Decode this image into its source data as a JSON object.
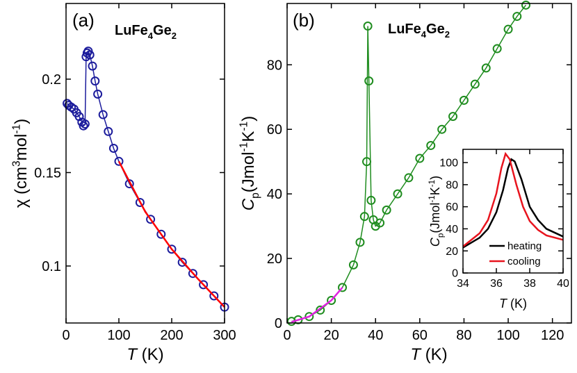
{
  "chart_data": [
    {
      "type": "scatter",
      "panel_label": "(a)",
      "title": [
        {
          "text": "LuFe"
        },
        {
          "text": "4",
          "shift": "sub"
        },
        {
          "text": "Ge"
        },
        {
          "text": "2",
          "shift": "sub"
        }
      ],
      "x_label": [
        {
          "text": "T",
          "italic": true
        },
        {
          "text": " (K)"
        }
      ],
      "y_label": [
        {
          "text": "χ (cm"
        },
        {
          "text": "3",
          "shift": "super"
        },
        {
          "text": "mol"
        },
        {
          "text": "-1",
          "shift": "super"
        },
        {
          "text": ")"
        }
      ],
      "xlim": [
        0,
        300
      ],
      "xticks": [
        0,
        100,
        200,
        300
      ],
      "ylim": [
        0.0695,
        0.2405
      ],
      "yticks": [
        0.1,
        0.15,
        0.2
      ],
      "series": [
        {
          "style": "markers",
          "color": "#1c1c9c",
          "x": [
            2,
            5,
            10,
            15,
            20,
            25,
            30,
            33,
            36,
            38,
            40,
            42,
            45,
            50,
            55,
            60,
            70,
            80,
            90,
            100,
            120,
            140,
            160,
            180,
            200,
            220,
            240,
            260,
            280,
            300
          ],
          "values": [
            0.187,
            0.186,
            0.185,
            0.184,
            0.182,
            0.18,
            0.177,
            0.175,
            0.176,
            0.212,
            0.214,
            0.215,
            0.213,
            0.207,
            0.199,
            0.192,
            0.181,
            0.172,
            0.163,
            0.156,
            0.144,
            0.134,
            0.125,
            0.117,
            0.109,
            0.102,
            0.096,
            0.09,
            0.084,
            0.078
          ]
        },
        {
          "style": "line",
          "color": "#ff0000",
          "x": [
            100,
            150,
            200,
            250,
            300
          ],
          "values": [
            0.156,
            0.129,
            0.109,
            0.093,
            0.078
          ]
        }
      ]
    },
    {
      "type": "scatter",
      "panel_label": "(b)",
      "title": [
        {
          "text": "LuFe"
        },
        {
          "text": "4",
          "shift": "sub"
        },
        {
          "text": "Ge"
        },
        {
          "text": "2",
          "shift": "sub"
        }
      ],
      "x_label": [
        {
          "text": "T",
          "italic": true
        },
        {
          "text": " (K)"
        }
      ],
      "y_label": [
        {
          "text": "C",
          "italic": true
        },
        {
          "text": "p",
          "shift": "sub"
        },
        {
          "text": "(Jmol"
        },
        {
          "text": "-1",
          "shift": "super"
        },
        {
          "text": "K"
        },
        {
          "text": "-1",
          "shift": "super"
        },
        {
          "text": ")"
        }
      ],
      "xlim": [
        0,
        128.6
      ],
      "xticks": [
        0,
        20,
        40,
        60,
        80,
        100,
        120
      ],
      "ylim": [
        0,
        99
      ],
      "yticks": [
        0,
        20,
        40,
        60,
        80
      ],
      "series": [
        {
          "style": "markers",
          "color": "#1e8c1e",
          "x": [
            2,
            5,
            10,
            15,
            20,
            25,
            30,
            33,
            35,
            36,
            36.5,
            37,
            38,
            39,
            40,
            42,
            45,
            50,
            55,
            60,
            65,
            70,
            75,
            80,
            85,
            90,
            95,
            100,
            104,
            108
          ],
          "values": [
            0.5,
            1,
            2,
            4,
            7,
            11,
            18,
            25,
            33,
            50,
            92,
            75,
            38,
            32,
            30,
            31,
            35,
            40,
            45,
            51,
            55,
            60,
            64,
            69,
            74,
            79,
            85,
            91,
            95,
            98.5
          ]
        },
        {
          "style": "line",
          "color": "#e020e0",
          "x": [
            2,
            10,
            20,
            25
          ],
          "values": [
            0.3,
            2,
            7,
            11
          ]
        }
      ]
    },
    {
      "type": "line",
      "legend": "lower right",
      "x_label": [
        {
          "text": "T",
          "italic": true
        },
        {
          "text": " (K)"
        }
      ],
      "y_label": [
        {
          "text": "C",
          "italic": true
        },
        {
          "text": "p",
          "shift": "sub"
        },
        {
          "text": "(Jmol"
        },
        {
          "text": "-1",
          "shift": "super"
        },
        {
          "text": "K"
        },
        {
          "text": "-1",
          "shift": "super"
        },
        {
          "text": ")"
        }
      ],
      "xlim": [
        34,
        40
      ],
      "xticks": [
        34,
        36,
        38,
        40
      ],
      "ylim": [
        0,
        112
      ],
      "yticks": [
        0,
        20,
        40,
        60,
        80,
        100
      ],
      "series": [
        {
          "name": "heating",
          "style": "line",
          "color": "#000000",
          "x": [
            34,
            35,
            35.5,
            36,
            36.4,
            36.7,
            36.9,
            37.1,
            37.5,
            38,
            38.5,
            39,
            40
          ],
          "values": [
            23,
            32,
            40,
            55,
            75,
            95,
            103,
            101,
            85,
            60,
            48,
            40,
            33
          ]
        },
        {
          "name": "cooling",
          "style": "line",
          "color": "#e8141e",
          "x": [
            34,
            35,
            35.5,
            36,
            36.3,
            36.55,
            36.8,
            37.2,
            37.6,
            38,
            38.5,
            39,
            40
          ],
          "values": [
            24,
            36,
            48,
            72,
            95,
            108,
            103,
            80,
            60,
            47,
            39,
            34,
            30
          ]
        }
      ]
    }
  ]
}
